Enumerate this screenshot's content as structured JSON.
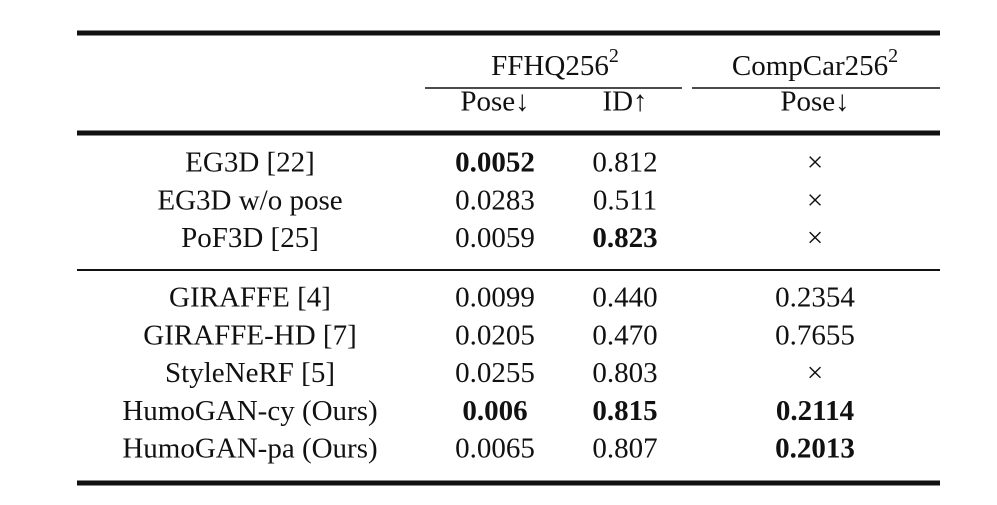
{
  "table": {
    "groups": [
      {
        "label": "FFHQ256",
        "sup": "2"
      },
      {
        "label": "CompCar256",
        "sup": "2"
      }
    ],
    "columns": [
      "Pose↓",
      "ID↑",
      "Pose↓"
    ],
    "sections": [
      [
        {
          "method": "EG3D [22]",
          "cells": [
            "0.0052",
            "0.812",
            "×"
          ],
          "bold": [
            true,
            false,
            false
          ]
        },
        {
          "method": "EG3D w/o pose",
          "cells": [
            "0.0283",
            "0.511",
            "×"
          ],
          "bold": [
            false,
            false,
            false
          ]
        },
        {
          "method": "PoF3D [25]",
          "cells": [
            "0.0059",
            "0.823",
            "×"
          ],
          "bold": [
            false,
            true,
            false
          ]
        }
      ],
      [
        {
          "method": "GIRAFFE [4]",
          "cells": [
            "0.0099",
            "0.440",
            "0.2354"
          ],
          "bold": [
            false,
            false,
            false
          ]
        },
        {
          "method": "GIRAFFE-HD [7]",
          "cells": [
            "0.0205",
            "0.470",
            "0.7655"
          ],
          "bold": [
            false,
            false,
            false
          ]
        },
        {
          "method": "StyleNeRF [5]",
          "cells": [
            "0.0255",
            "0.803",
            "×"
          ],
          "bold": [
            false,
            false,
            false
          ]
        },
        {
          "method": "HumoGAN-cy (Ours)",
          "cells": [
            "0.006",
            "0.815",
            "0.2114"
          ],
          "bold": [
            true,
            true,
            true
          ]
        },
        {
          "method": "HumoGAN-pa (Ours)",
          "cells": [
            "0.0065",
            "0.807",
            "0.2013"
          ],
          "bold": [
            false,
            false,
            true
          ]
        }
      ]
    ]
  }
}
